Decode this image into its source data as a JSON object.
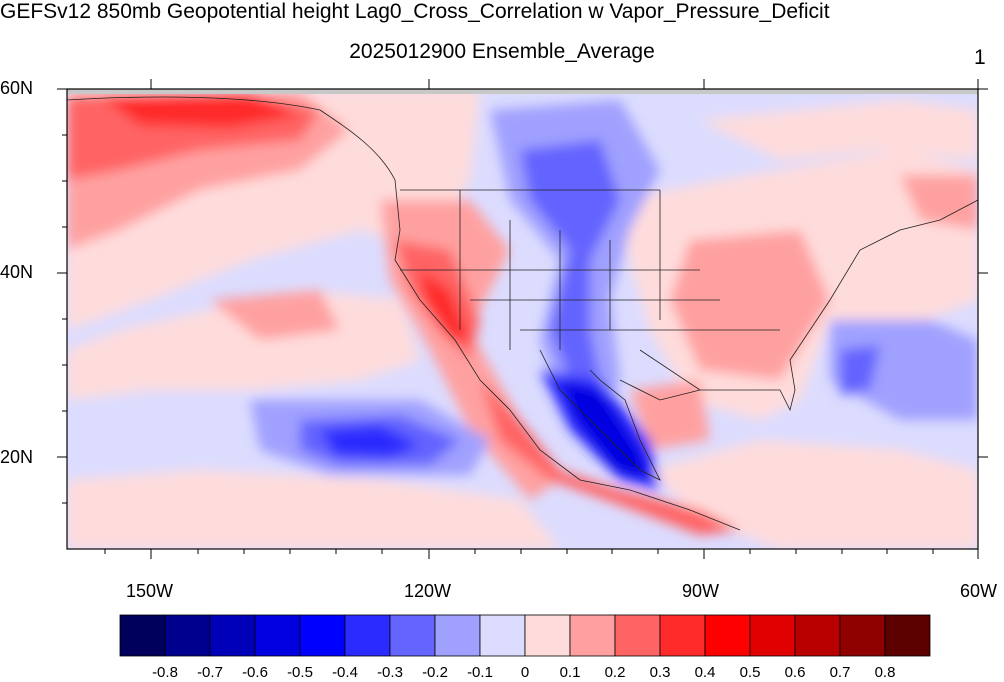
{
  "title": "GEFSv12 850mb Geopotential height Lag0_Cross_Correlation w Vapor_Pressure_Deficit",
  "subtitle": "2025012900 Ensemble_Average",
  "panel_id": "1",
  "lat_labels": [
    "60N",
    "40N",
    "20N"
  ],
  "lon_labels": [
    "150W",
    "120W",
    "90W",
    "60W"
  ],
  "colorbar": {
    "labels": [
      "-0.8",
      "-0.7",
      "-0.6",
      "-0.5",
      "-0.4",
      "-0.3",
      "-0.2",
      "-0.1",
      "0",
      "0.1",
      "0.2",
      "0.3",
      "0.4",
      "0.5",
      "0.6",
      "0.7",
      "0.8"
    ],
    "colors": [
      "#00005c",
      "#00008f",
      "#0000b8",
      "#0000e0",
      "#0000ff",
      "#2b2bff",
      "#6464ff",
      "#a0a0ff",
      "#dcdcff",
      "#ffdcdc",
      "#ffa0a0",
      "#ff6464",
      "#ff2b2b",
      "#ff0000",
      "#e00000",
      "#b80000",
      "#8f0000",
      "#5c0000"
    ]
  },
  "map": {
    "lat_range": [
      10,
      60
    ],
    "lon_range": [
      -160,
      -60
    ]
  }
}
